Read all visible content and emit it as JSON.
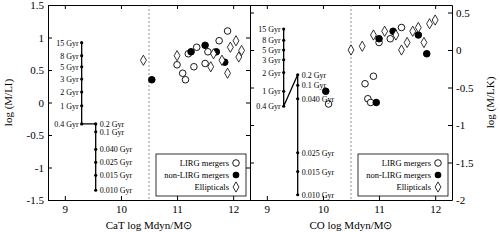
{
  "chart_data": [
    {
      "type": "scatter",
      "x_label": "CaT log Mdyn/M⊙",
      "y_label": "log (M/LI)",
      "xlim": [
        8.7,
        12.3
      ],
      "xticks": [
        9,
        10,
        11,
        12
      ],
      "ylim": [
        -1.5,
        1.5
      ],
      "yticks": [
        -1.5,
        -1,
        -0.5,
        0,
        0.5,
        1,
        1.5
      ],
      "legend": "lower right",
      "reference_lines": [
        {
          "x": 10.5,
          "line_style": "dotted"
        }
      ],
      "series": [
        {
          "type": "line",
          "marker": "circle",
          "color": "#000000",
          "x": [
            9.3,
            9.3,
            9.3,
            9.3,
            9.3,
            9.3,
            9.3,
            9.55,
            9.55,
            9.55,
            9.55,
            9.55,
            9.55
          ],
          "values": [
            0.92,
            0.72,
            0.55,
            0.36,
            0.16,
            -0.05,
            -0.33,
            -0.33,
            -0.45,
            -0.72,
            -0.92,
            -1.12,
            -1.35
          ],
          "labels": [
            "15 Gyr",
            "8 Gyr",
            "5 Gyr",
            "3 Gyr",
            "2 Gyr",
            "1 Gyr",
            "0.4 Gyr",
            "0.2 Gyr",
            "0.1 Gyr",
            "0.040 Gyr",
            "0.025 Gyr",
            "0.015 Gyr",
            "0.010 Gyr"
          ]
        },
        {
          "name": "LIRG mergers",
          "type": "scatter",
          "marker": "open-circle",
          "color": "#000000",
          "x": [
            11.0,
            11.1,
            11.15,
            11.2,
            11.3,
            11.35,
            11.5,
            11.55,
            11.75,
            11.9
          ],
          "values": [
            0.58,
            0.45,
            0.35,
            0.75,
            0.55,
            0.85,
            0.6,
            0.78,
            0.95,
            1.1
          ]
        },
        {
          "name": "non-LIRG mergers",
          "type": "scatter",
          "marker": "filled-circle",
          "color": "#000000",
          "x": [
            10.55,
            11.25,
            11.5,
            11.7,
            11.85
          ],
          "values": [
            0.35,
            0.78,
            0.88,
            0.78,
            0.62
          ]
        },
        {
          "name": "Ellipticals",
          "type": "scatter",
          "marker": "open-diamond",
          "color": "#000000",
          "x": [
            10.4,
            11.0,
            11.6,
            11.65,
            11.8,
            11.95,
            12.05,
            12.1,
            12.15,
            11.9
          ],
          "values": [
            0.65,
            0.72,
            0.55,
            0.75,
            0.65,
            0.85,
            0.95,
            0.7,
            0.8,
            0.45
          ]
        }
      ]
    },
    {
      "type": "scatter",
      "x_label": "CO log Mdyn/M⊙",
      "y_label": "log (M/LK)",
      "xlim": [
        8.7,
        12.3
      ],
      "xticks": [
        9,
        10,
        11,
        12
      ],
      "ylim": [
        -2.0,
        0.6
      ],
      "yticks": [
        -2,
        -1.5,
        -1,
        -0.5,
        0,
        0.5
      ],
      "legend": "lower right",
      "reference_lines": [
        {
          "x": 10.5,
          "line_style": "dotted"
        }
      ],
      "series": [
        {
          "type": "line",
          "marker": "circle",
          "color": "#000000",
          "x": [
            9.3,
            9.3,
            9.3,
            9.3,
            9.3,
            9.3,
            9.3,
            9.55,
            9.55,
            9.55,
            9.55,
            9.55,
            9.55
          ],
          "values": [
            0.28,
            0.13,
            0.0,
            -0.13,
            -0.3,
            -0.55,
            -0.75,
            -0.33,
            -0.47,
            -0.65,
            -1.37,
            -1.62,
            -1.93
          ],
          "labels": [
            "15 Gyr",
            "8 Gyr",
            "5 Gyr",
            "3 Gyr",
            "2 Gyr",
            "1 Gyr",
            "0.4 Gyr",
            "0.2 Gyr",
            "0.1 Gyr",
            "0.040 Gyr",
            "0.025 Gyr",
            "0.015 Gyr",
            "0.010 Gyr"
          ]
        },
        {
          "name": "LIRG mergers",
          "type": "scatter",
          "marker": "open-circle",
          "color": "#000000",
          "x": [
            10.1,
            10.75,
            10.8,
            10.85,
            10.9,
            11.0,
            11.2,
            11.4
          ],
          "values": [
            -0.72,
            -0.45,
            -0.65,
            -0.7,
            -0.35,
            0.1,
            0.15,
            0.3
          ]
        },
        {
          "name": "non-LIRG mergers",
          "type": "scatter",
          "marker": "filled-circle",
          "color": "#000000",
          "x": [
            10.05,
            10.95,
            11.0,
            11.25,
            11.7,
            11.85
          ],
          "values": [
            -0.55,
            -0.7,
            0.15,
            0.25,
            0.2,
            -0.05
          ]
        },
        {
          "name": "Ellipticals",
          "type": "scatter",
          "marker": "open-diamond",
          "color": "#000000",
          "x": [
            10.5,
            10.7,
            10.9,
            11.1,
            11.3,
            11.4,
            11.5,
            11.6,
            11.7,
            11.8,
            11.9,
            12.0
          ],
          "values": [
            0.0,
            0.05,
            0.2,
            0.25,
            0.2,
            0.0,
            0.1,
            0.25,
            0.3,
            0.1,
            0.35,
            0.4
          ]
        }
      ]
    }
  ]
}
